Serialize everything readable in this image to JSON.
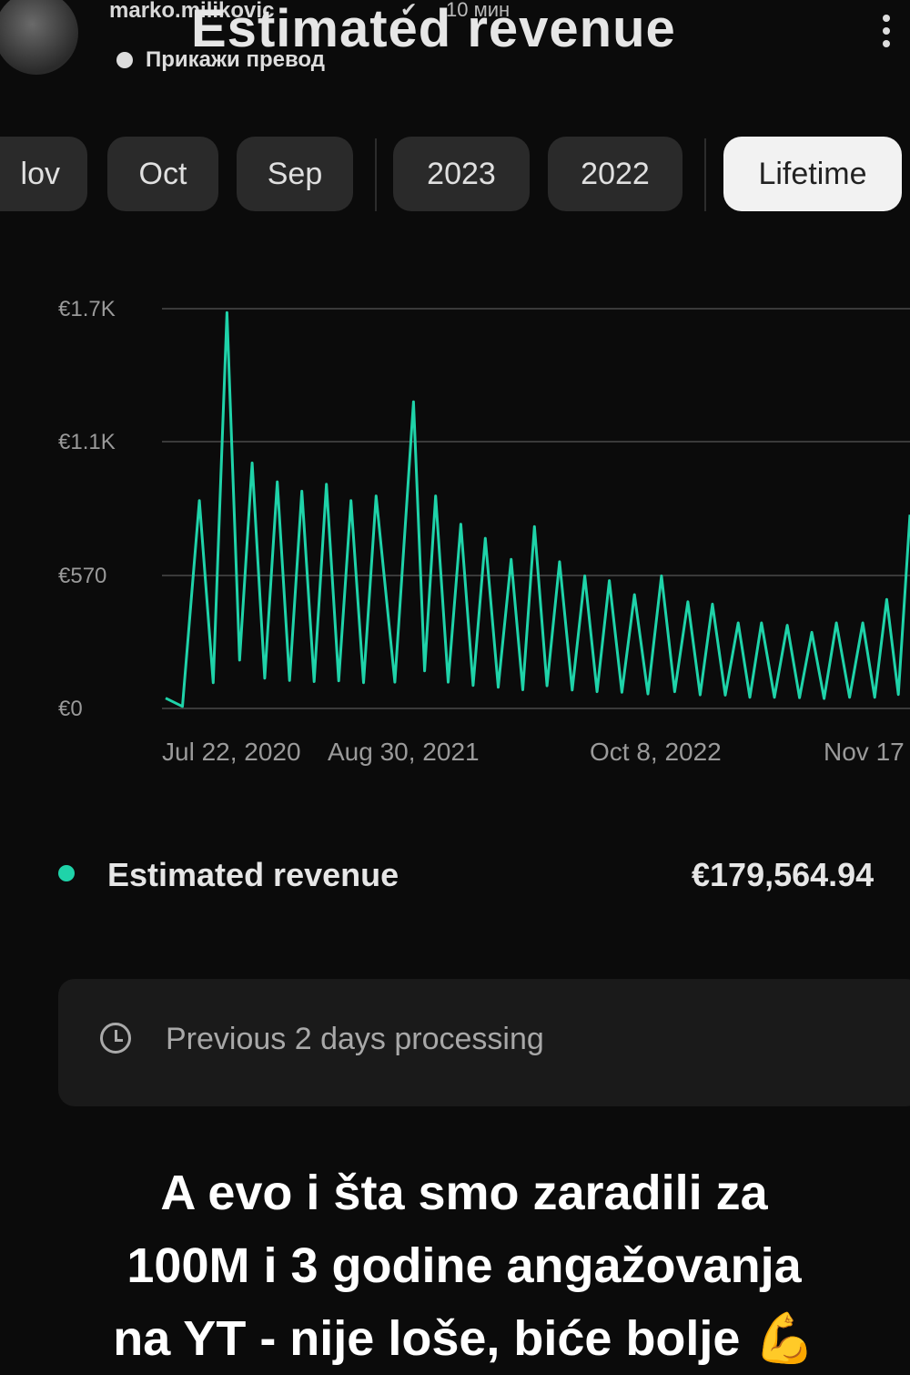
{
  "header": {
    "username": "marko.milikovic",
    "verified_icon": "check-badge-icon",
    "time": "10 мин",
    "translate": "Прикажи превод",
    "title": "Estimated revenue"
  },
  "chips": [
    "lov",
    "Oct",
    "Sep",
    "2023",
    "2022",
    "Lifetime"
  ],
  "chart_data": {
    "type": "line",
    "series": [
      {
        "name": "Estimated revenue",
        "color": "#1fd3a9",
        "x": [
          "2020-07-22",
          "2020-09-15",
          "2020-10-30",
          "2020-12-10",
          "2021-01-20",
          "2021-03-01",
          "2021-04-10",
          "2021-05-20",
          "2021-06-30",
          "2021-08-30",
          "2021-10-05",
          "2021-11-15",
          "2021-12-25",
          "2022-02-05",
          "2022-03-15",
          "2022-04-25",
          "2022-06-05",
          "2022-07-15",
          "2022-08-25",
          "2022-10-08",
          "2022-11-20",
          "2022-12-30",
          "2023-02-10",
          "2023-03-20",
          "2023-05-01",
          "2023-06-10",
          "2023-07-20",
          "2023-09-01",
          "2023-10-10",
          "2023-11-17"
        ],
        "values": [
          40,
          880,
          1680,
          1040,
          960,
          920,
          950,
          880,
          900,
          1300,
          900,
          780,
          720,
          630,
          770,
          620,
          560,
          540,
          480,
          560,
          450,
          440,
          360,
          360,
          350,
          320,
          360,
          360,
          460,
          820
        ]
      }
    ],
    "y_ticks": [
      "€0",
      "€570",
      "€1.1K",
      "€1.7K"
    ],
    "ylim": [
      0,
      1700
    ],
    "x_ticks": [
      "Jul 22, 2020",
      "Aug 30, 2021",
      "Oct 8, 2022",
      "Nov 17"
    ],
    "xlim": [
      "2020-07-22",
      "2023-11-17"
    ],
    "grid": true
  },
  "legend": {
    "label": "Estimated revenue",
    "value": "€179,564.94",
    "color": "#1fd3a9"
  },
  "notice": {
    "icon": "clock-icon",
    "text": "Previous 2 days processing"
  },
  "caption": {
    "line1": "A evo i šta smo zaradili za",
    "line2": "100M i 3 godine angažovanja",
    "line3": "na YT - nije loše, biće bolje",
    "emoji": "💪"
  }
}
